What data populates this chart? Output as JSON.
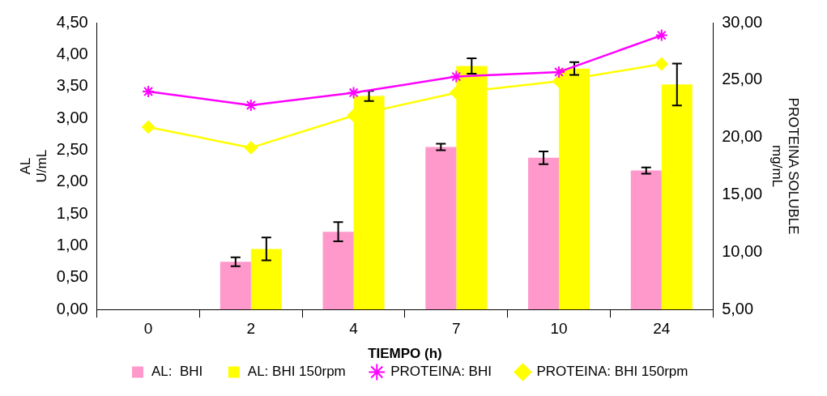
{
  "chart_data": {
    "type": "bar",
    "xlabel": "TIEMPO (h)",
    "ylabel": "AL\nU/mL",
    "y2label": "PROTEINA SOLUBLE\nmg/mL",
    "categories": [
      "0",
      "2",
      "4",
      "7",
      "10",
      "24"
    ],
    "series": [
      {
        "name": "AL:  BHI",
        "color": "#ff99cc",
        "values": [
          0,
          0.75,
          1.22,
          2.55,
          2.38,
          2.18
        ],
        "errors": [
          null,
          0.07,
          0.15,
          0.05,
          0.1,
          0.05
        ]
      },
      {
        "name": "AL: BHI 150rpm",
        "color": "#ffff00",
        "values": [
          0,
          0.95,
          3.35,
          3.82,
          3.78,
          3.53
        ],
        "errors": [
          null,
          0.18,
          0.08,
          0.12,
          0.1,
          0.33
        ]
      },
      {
        "name": "PROTEINA: BHI",
        "type": "line",
        "axis": "y2",
        "marker": "cross",
        "color": "#ff00ff",
        "values": [
          24.0,
          22.8,
          23.9,
          25.3,
          25.7,
          28.9
        ]
      },
      {
        "name": "PROTEINA: BHI 150rpm",
        "type": "line",
        "axis": "y2",
        "marker": "diamond",
        "color": "#ffff00",
        "values": [
          20.9,
          19.1,
          21.9,
          23.9,
          24.9,
          26.4
        ]
      }
    ],
    "ylim": [
      0,
      4.5
    ],
    "yticks": [
      {
        "value": 0,
        "label": "0,00"
      },
      {
        "value": 0.5,
        "label": "0,50"
      },
      {
        "value": 1,
        "label": "1,00"
      },
      {
        "value": 1.5,
        "label": "1,50"
      },
      {
        "value": 2,
        "label": "2,00"
      },
      {
        "value": 2.5,
        "label": "2,50"
      },
      {
        "value": 3,
        "label": "3,00"
      },
      {
        "value": 3.5,
        "label": "3,50"
      },
      {
        "value": 4,
        "label": "4,00"
      },
      {
        "value": 4.5,
        "label": "4,50"
      }
    ],
    "y2lim": [
      5,
      30
    ],
    "y2ticks": [
      {
        "value": 5,
        "label": "5,00"
      },
      {
        "value": 10,
        "label": "10,00"
      },
      {
        "value": 15,
        "label": "15,00"
      },
      {
        "value": 20,
        "label": "20,00"
      },
      {
        "value": 25,
        "label": "25,00"
      },
      {
        "value": 30,
        "label": "30,00"
      }
    ],
    "grid": false,
    "legend": "bottom"
  }
}
